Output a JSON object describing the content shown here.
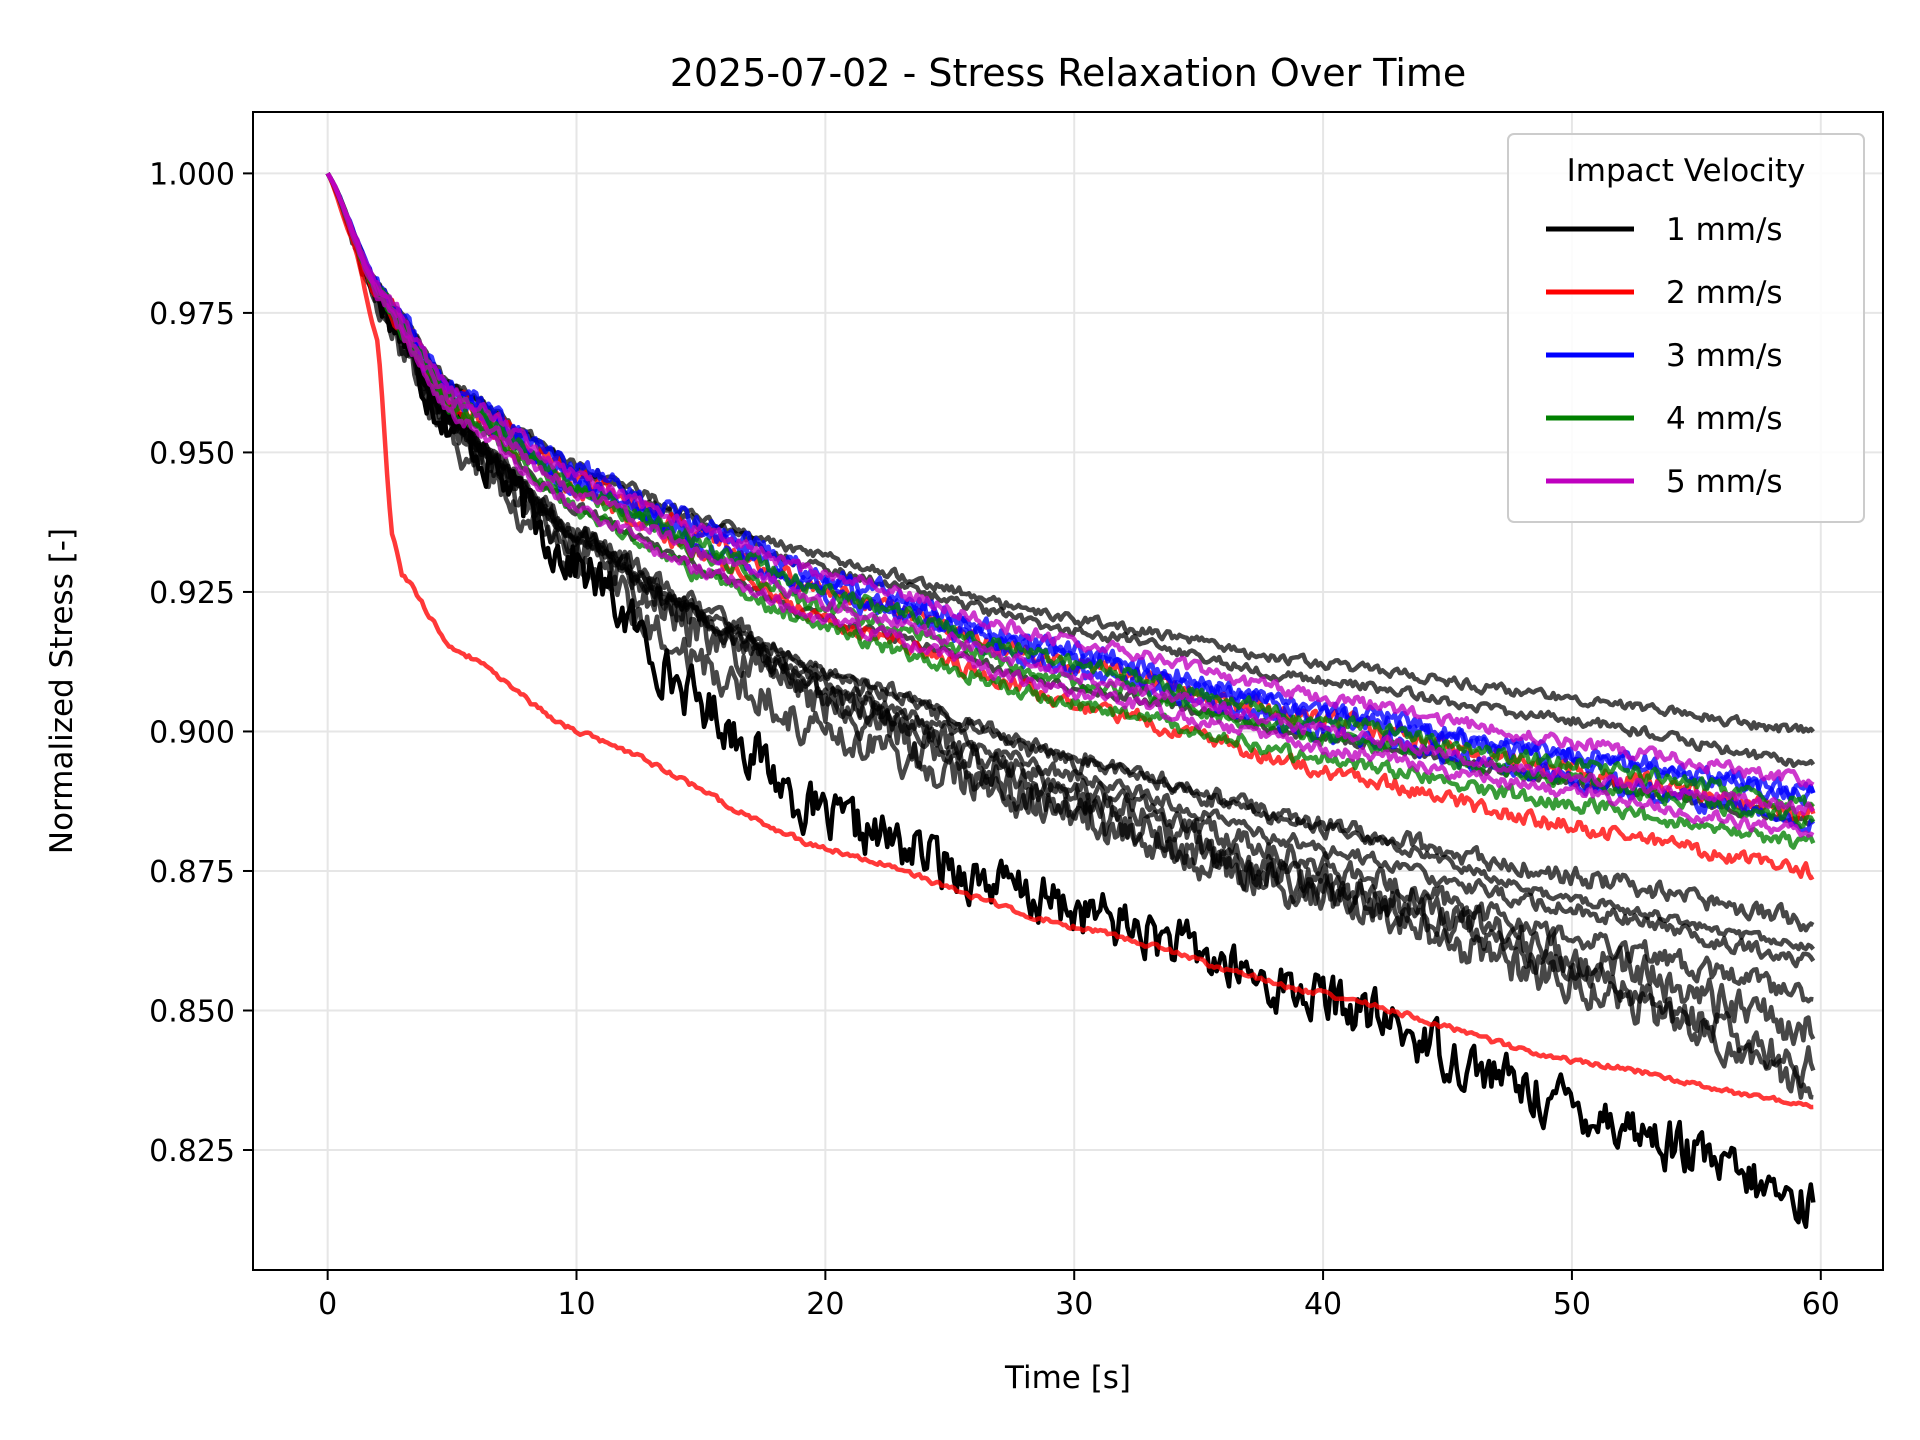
{
  "chart_data": {
    "type": "line",
    "title": "2025-07-02 - Stress Relaxation Over Time",
    "xlabel": "Time [s]",
    "ylabel": "Normalized Stress [-]",
    "xlim": [
      -3,
      62.5
    ],
    "ylim": [
      0.8035,
      1.011
    ],
    "xticks": [
      "0",
      "10",
      "20",
      "30",
      "40",
      "50",
      "60"
    ],
    "xtick_values": [
      0,
      10,
      20,
      30,
      40,
      50,
      60
    ],
    "yticks": [
      "0.825",
      "0.850",
      "0.875",
      "0.900",
      "0.925",
      "0.950",
      "0.975",
      "1.000"
    ],
    "ytick_values": [
      0.825,
      0.85,
      0.875,
      0.9,
      0.925,
      0.95,
      0.975,
      1.0
    ],
    "grid": true,
    "legend": {
      "title": "Impact Velocity",
      "placement": "top-right",
      "entries": [
        {
          "label": "1 mm/s",
          "color": "#000000"
        },
        {
          "label": "2 mm/s",
          "color": "#ff0000"
        },
        {
          "label": "3 mm/s",
          "color": "#0000ff"
        },
        {
          "label": "4 mm/s",
          "color": "#008000"
        },
        {
          "label": "5 mm/s",
          "color": "#bf00bf"
        }
      ]
    },
    "series": [
      {
        "velocity": "1 mm/s",
        "color": "#000000",
        "noise": 0.004,
        "x": [
          0,
          2,
          5,
          10,
          15,
          20,
          30,
          40,
          50,
          59.7
        ],
        "y": [
          1.0,
          0.978,
          0.955,
          0.93,
          0.905,
          0.884,
          0.868,
          0.852,
          0.833,
          0.815
        ]
      },
      {
        "velocity": "1 mm/s",
        "color": "#000000",
        "noise": 0.0008,
        "x": [
          0,
          2,
          5,
          10,
          15,
          20,
          30,
          40,
          50,
          59.7
        ],
        "y": [
          1.0,
          0.98,
          0.962,
          0.947,
          0.937,
          0.929,
          0.918,
          0.909,
          0.902,
          0.894
        ]
      },
      {
        "velocity": "1 mm/s",
        "color": "#000000",
        "noise": 0.0008,
        "x": [
          0,
          2,
          5,
          10,
          15,
          20,
          30,
          40,
          50,
          59.7
        ],
        "y": [
          1.0,
          0.98,
          0.962,
          0.948,
          0.938,
          0.931,
          0.92,
          0.912,
          0.906,
          0.9
        ]
      },
      {
        "velocity": "1 mm/s",
        "color": "#000000",
        "noise": 0.0008,
        "x": [
          0,
          2,
          5,
          10,
          15,
          20,
          30,
          40,
          50,
          59.7
        ],
        "y": [
          1.0,
          0.979,
          0.958,
          0.94,
          0.929,
          0.92,
          0.908,
          0.899,
          0.891,
          0.884
        ]
      },
      {
        "velocity": "1 mm/s",
        "color": "#000000",
        "noise": 0.0008,
        "x": [
          0,
          2,
          5,
          10,
          15,
          20,
          30,
          40,
          50,
          59.7
        ],
        "y": [
          1.0,
          0.978,
          0.955,
          0.935,
          0.921,
          0.911,
          0.895,
          0.883,
          0.87,
          0.861
        ]
      },
      {
        "velocity": "1 mm/s",
        "color": "#000000",
        "noise": 0.0012,
        "x": [
          0,
          2,
          5,
          10,
          15,
          20,
          30,
          40,
          50,
          59.7
        ],
        "y": [
          1.0,
          0.978,
          0.955,
          0.935,
          0.92,
          0.908,
          0.892,
          0.879,
          0.868,
          0.859
        ]
      },
      {
        "velocity": "1 mm/s",
        "color": "#000000",
        "noise": 0.0015,
        "x": [
          0,
          2,
          5,
          10,
          15,
          20,
          30,
          40,
          50,
          59.7
        ],
        "y": [
          1.0,
          0.978,
          0.955,
          0.936,
          0.922,
          0.91,
          0.895,
          0.883,
          0.874,
          0.866
        ]
      },
      {
        "velocity": "1 mm/s",
        "color": "#000000",
        "noise": 0.0018,
        "x": [
          0,
          2,
          5,
          10,
          15,
          20,
          30,
          40,
          50,
          59.7
        ],
        "y": [
          1.0,
          0.978,
          0.955,
          0.935,
          0.92,
          0.906,
          0.89,
          0.876,
          0.863,
          0.853
        ]
      },
      {
        "velocity": "1 mm/s",
        "color": "#000000",
        "noise": 0.003,
        "x": [
          0,
          2,
          5,
          10,
          15,
          20,
          30,
          40,
          50,
          59.7
        ],
        "y": [
          1.0,
          0.977,
          0.952,
          0.93,
          0.912,
          0.9,
          0.885,
          0.87,
          0.855,
          0.84
        ]
      },
      {
        "velocity": "1 mm/s",
        "color": "#000000",
        "noise": 0.003,
        "x": [
          0,
          2,
          5,
          10,
          15,
          20,
          30,
          40,
          50,
          59.7
        ],
        "y": [
          1.0,
          0.977,
          0.955,
          0.933,
          0.918,
          0.905,
          0.885,
          0.872,
          0.86,
          0.846
        ]
      },
      {
        "velocity": "1 mm/s",
        "color": "#000000",
        "noise": 0.0025,
        "x": [
          0,
          2,
          5,
          10,
          15,
          20,
          30,
          40,
          50,
          59.7
        ],
        "y": [
          1.0,
          0.977,
          0.955,
          0.934,
          0.92,
          0.907,
          0.888,
          0.873,
          0.858,
          0.836
        ]
      },
      {
        "velocity": "2 mm/s",
        "color": "#ff0000",
        "noise": 0.0004,
        "x": [
          0,
          1,
          2,
          2.6,
          3,
          5,
          10,
          20,
          30,
          40,
          50,
          59.7
        ],
        "y": [
          1.0,
          0.988,
          0.97,
          0.935,
          0.928,
          0.915,
          0.9,
          0.879,
          0.865,
          0.853,
          0.841,
          0.833
        ]
      },
      {
        "velocity": "2 mm/s",
        "color": "#ff0000",
        "noise": 0.0012,
        "x": [
          0,
          2,
          5,
          10,
          15,
          20,
          30,
          40,
          50,
          59.7
        ],
        "y": [
          1.0,
          0.978,
          0.958,
          0.943,
          0.932,
          0.92,
          0.905,
          0.893,
          0.883,
          0.875
        ]
      },
      {
        "velocity": "2 mm/s",
        "color": "#ff0000",
        "noise": 0.0015,
        "x": [
          0,
          2,
          5,
          10,
          15,
          20,
          30,
          40,
          50,
          59.7
        ],
        "y": [
          1.0,
          0.979,
          0.96,
          0.946,
          0.935,
          0.925,
          0.912,
          0.902,
          0.893,
          0.885
        ]
      },
      {
        "velocity": "3 mm/s",
        "color": "#0000ff",
        "noise": 0.0015,
        "x": [
          0,
          2,
          5,
          10,
          15,
          20,
          30,
          40,
          50,
          59.7
        ],
        "y": [
          1.0,
          0.979,
          0.96,
          0.945,
          0.935,
          0.926,
          0.913,
          0.903,
          0.895,
          0.889
        ]
      },
      {
        "velocity": "3 mm/s",
        "color": "#0000ff",
        "noise": 0.0015,
        "x": [
          0,
          2,
          5,
          10,
          15,
          20,
          30,
          40,
          50,
          59.7
        ],
        "y": [
          1.0,
          0.98,
          0.962,
          0.947,
          0.937,
          0.928,
          0.914,
          0.904,
          0.896,
          0.889
        ]
      },
      {
        "velocity": "3 mm/s",
        "color": "#0000ff",
        "noise": 0.0015,
        "x": [
          0,
          2,
          5,
          10,
          15,
          20,
          30,
          40,
          50,
          59.7
        ],
        "y": [
          1.0,
          0.979,
          0.96,
          0.944,
          0.933,
          0.924,
          0.911,
          0.9,
          0.891,
          0.884
        ]
      },
      {
        "velocity": "4 mm/s",
        "color": "#008000",
        "noise": 0.0012,
        "x": [
          0,
          2,
          5,
          10,
          15,
          20,
          30,
          40,
          50,
          59.7
        ],
        "y": [
          1.0,
          0.978,
          0.958,
          0.94,
          0.928,
          0.918,
          0.905,
          0.895,
          0.887,
          0.88
        ]
      },
      {
        "velocity": "4 mm/s",
        "color": "#008000",
        "noise": 0.0012,
        "x": [
          0,
          2,
          5,
          10,
          15,
          20,
          30,
          40,
          50,
          59.7
        ],
        "y": [
          1.0,
          0.979,
          0.959,
          0.943,
          0.932,
          0.922,
          0.909,
          0.899,
          0.891,
          0.884
        ]
      },
      {
        "velocity": "4 mm/s",
        "color": "#008000",
        "noise": 0.0012,
        "x": [
          0,
          2,
          5,
          10,
          15,
          20,
          30,
          40,
          50,
          59.7
        ],
        "y": [
          1.0,
          0.979,
          0.96,
          0.944,
          0.934,
          0.925,
          0.912,
          0.902,
          0.894,
          0.887
        ]
      },
      {
        "velocity": "5 mm/s",
        "color": "#bf00bf",
        "noise": 0.001,
        "x": [
          0,
          2,
          5,
          10,
          15,
          20,
          30,
          40,
          50,
          59.7
        ],
        "y": [
          1.0,
          0.978,
          0.957,
          0.94,
          0.929,
          0.92,
          0.907,
          0.897,
          0.889,
          0.882
        ]
      },
      {
        "velocity": "5 mm/s",
        "color": "#bf00bf",
        "noise": 0.001,
        "x": [
          0,
          2,
          5,
          10,
          15,
          20,
          30,
          40,
          50,
          59.7
        ],
        "y": [
          1.0,
          0.979,
          0.959,
          0.943,
          0.932,
          0.923,
          0.91,
          0.9,
          0.892,
          0.886
        ]
      },
      {
        "velocity": "5 mm/s",
        "color": "#bf00bf",
        "noise": 0.001,
        "x": [
          0,
          2,
          5,
          10,
          15,
          20,
          30,
          40,
          50,
          59.7
        ],
        "y": [
          1.0,
          0.98,
          0.961,
          0.946,
          0.936,
          0.928,
          0.916,
          0.906,
          0.898,
          0.891
        ]
      }
    ]
  }
}
